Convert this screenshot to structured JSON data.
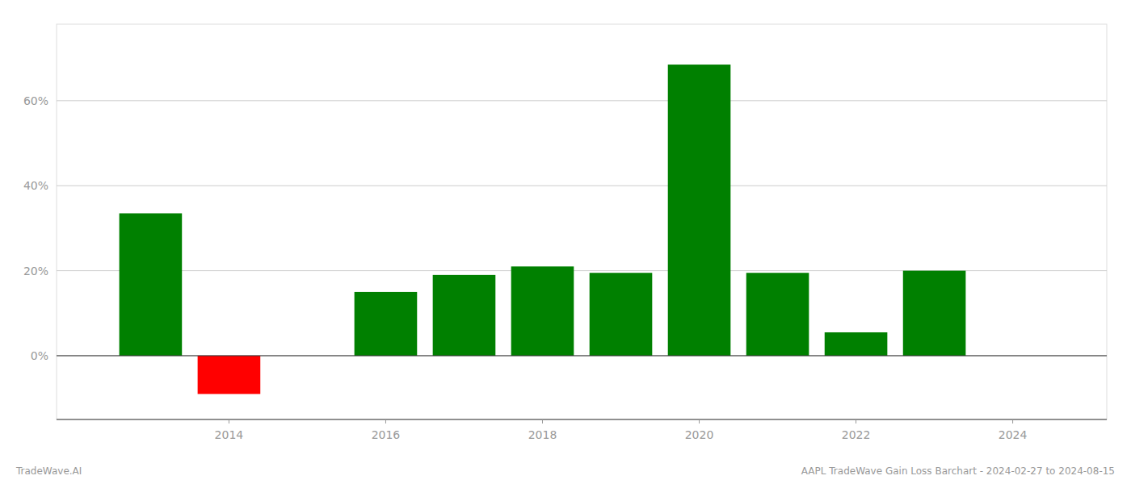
{
  "chart_data": {
    "type": "bar",
    "x": [
      2013,
      2014,
      2016,
      2017,
      2018,
      2019,
      2020,
      2021,
      2022,
      2023
    ],
    "values": [
      0.335,
      -0.09,
      0.15,
      0.19,
      0.21,
      0.195,
      0.685,
      0.195,
      0.055,
      0.2
    ],
    "colors": [
      "#008000",
      "#ff0000",
      "#008000",
      "#008000",
      "#008000",
      "#008000",
      "#008000",
      "#008000",
      "#008000",
      "#008000"
    ],
    "xlim": [
      2011.8,
      2025.2
    ],
    "xticks": [
      2014,
      2016,
      2018,
      2020,
      2022,
      2024
    ],
    "ylim": [
      -0.15,
      0.78
    ],
    "yticks": [
      {
        "value": 0.0,
        "label": "0%"
      },
      {
        "value": 0.2,
        "label": "20%"
      },
      {
        "value": 0.4,
        "label": "40%"
      },
      {
        "value": 0.6,
        "label": "60%"
      }
    ],
    "grid": true,
    "annotations": [
      "TradeWave.AI",
      "AAPL TradeWave Gain Loss Barchart - 2024-02-27 to 2024-08-15"
    ]
  }
}
